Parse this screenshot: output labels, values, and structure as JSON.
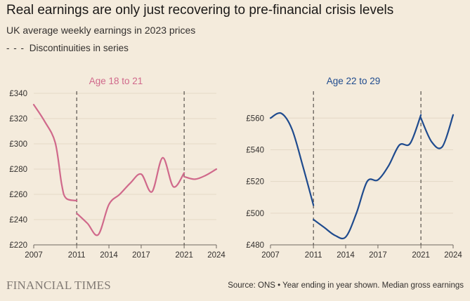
{
  "header": {
    "title": "Real earnings are only just recovering to pre-financial crisis levels",
    "subtitle": "UK average weekly earnings in 2023 prices",
    "legend_dash": "- - -",
    "legend_label": "Discontinuities in series"
  },
  "footer": {
    "brand": "FINANCIAL TIMES",
    "source": "Source: ONS • Year ending in year shown. Median gross earnings"
  },
  "chart_data": [
    {
      "type": "line",
      "title": "Age 18 to 21",
      "color": "#d0698b",
      "xlim": [
        2007,
        2024
      ],
      "ylim": [
        220,
        340
      ],
      "yticks": [
        220,
        240,
        260,
        280,
        300,
        320,
        340
      ],
      "ytick_labels": [
        "£220",
        "£240",
        "£260",
        "£280",
        "£300",
        "£320",
        "£340"
      ],
      "xticks": [
        2007,
        2011,
        2014,
        2017,
        2021,
        2024
      ],
      "xtick_labels": [
        "2007",
        "2011",
        "2014",
        "2017",
        "2021",
        "2024"
      ],
      "discontinuities": [
        2011,
        2021
      ],
      "segments": [
        [
          [
            2007,
            331
          ],
          [
            2008,
            318
          ],
          [
            2009,
            301
          ],
          [
            2009.6,
            268
          ],
          [
            2010,
            257
          ],
          [
            2011,
            255
          ]
        ],
        [
          [
            2011,
            245
          ],
          [
            2012,
            237
          ],
          [
            2013,
            228
          ],
          [
            2014,
            252
          ],
          [
            2015,
            260
          ],
          [
            2016,
            269
          ],
          [
            2017,
            276
          ],
          [
            2018,
            262
          ],
          [
            2019,
            289
          ],
          [
            2020,
            266
          ],
          [
            2021,
            277
          ]
        ],
        [
          [
            2021,
            274
          ],
          [
            2022,
            272
          ],
          [
            2023,
            275
          ],
          [
            2024,
            280
          ]
        ]
      ]
    },
    {
      "type": "line",
      "title": "Age 22 to 29",
      "color": "#1f4b8e",
      "xlim": [
        2007,
        2024
      ],
      "ylim": [
        480,
        565
      ],
      "yticks": [
        480,
        500,
        520,
        540,
        560
      ],
      "ytick_labels": [
        "£480",
        "£500",
        "£520",
        "£540",
        "£560"
      ],
      "xticks": [
        2007,
        2011,
        2014,
        2017,
        2021,
        2024
      ],
      "xtick_labels": [
        "2007",
        "2011",
        "2014",
        "2017",
        "2021",
        "2024"
      ],
      "discontinuities": [
        2011,
        2021
      ],
      "segments": [
        [
          [
            2007,
            560
          ],
          [
            2008,
            563
          ],
          [
            2009,
            553
          ],
          [
            2010,
            530
          ],
          [
            2011,
            505
          ]
        ],
        [
          [
            2011,
            496
          ],
          [
            2012,
            491
          ],
          [
            2013,
            486
          ],
          [
            2014,
            485
          ],
          [
            2015,
            500
          ],
          [
            2016,
            520
          ],
          [
            2017,
            521
          ],
          [
            2018,
            530
          ],
          [
            2019,
            543
          ],
          [
            2020,
            544
          ],
          [
            2021,
            562
          ]
        ],
        [
          [
            2021,
            560
          ],
          [
            2022,
            545
          ],
          [
            2023,
            542
          ],
          [
            2024,
            562
          ]
        ]
      ]
    }
  ]
}
